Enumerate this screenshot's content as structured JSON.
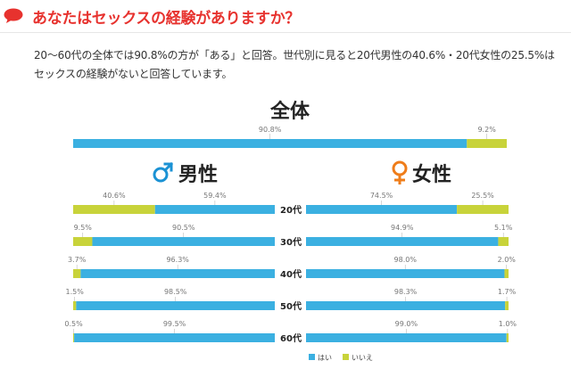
{
  "question": "あなたはセックスの経験がありますか？",
  "description": "20〜60代の全体では90.8%の方が「ある」と回答。世代別に見ると20代男性の40.6%・20代女性の25.5%はセックスの経験がないと回答しています。",
  "colors": {
    "yes": "#3bb0e1",
    "no": "#c8d33a",
    "male_symbol": "#1b92d4",
    "female_symbol": "#ef7d1a",
    "title_red": "#e7322e"
  },
  "icons": {
    "question_icon": "speech-bubble-icon",
    "male_icon": "male-symbol-icon",
    "female_icon": "female-symbol-icon"
  },
  "chart_data": {
    "type": "bar",
    "overall": {
      "title": "全体",
      "values": [
        90.8,
        9.2
      ],
      "labels": [
        "90.8%",
        "9.2%"
      ]
    },
    "male": {
      "title": "男性",
      "symbol": "♂",
      "rows": [
        {
          "age": "20代",
          "yes": 59.4,
          "no": 40.6,
          "yes_label": "59.4%",
          "no_label": "40.6%"
        },
        {
          "age": "30代",
          "yes": 90.5,
          "no": 9.5,
          "yes_label": "90.5%",
          "no_label": "9.5%"
        },
        {
          "age": "40代",
          "yes": 96.3,
          "no": 3.7,
          "yes_label": "96.3%",
          "no_label": "3.7%"
        },
        {
          "age": "50代",
          "yes": 98.5,
          "no": 1.5,
          "yes_label": "98.5%",
          "no_label": "1.5%"
        },
        {
          "age": "60代",
          "yes": 99.5,
          "no": 0.5,
          "yes_label": "99.5%",
          "no_label": "0.5%"
        }
      ]
    },
    "female": {
      "title": "女性",
      "symbol": "♀",
      "rows": [
        {
          "age": "20代",
          "yes": 74.5,
          "no": 25.5,
          "yes_label": "74.5%",
          "no_label": "25.5%"
        },
        {
          "age": "30代",
          "yes": 94.9,
          "no": 5.1,
          "yes_label": "94.9%",
          "no_label": "5.1%"
        },
        {
          "age": "40代",
          "yes": 98.0,
          "no": 2.0,
          "yes_label": "98.0%",
          "no_label": "2.0%"
        },
        {
          "age": "50代",
          "yes": 98.3,
          "no": 1.7,
          "yes_label": "98.3%",
          "no_label": "1.7%"
        },
        {
          "age": "60代",
          "yes": 99.0,
          "no": 1.0,
          "yes_label": "99.0%",
          "no_label": "1.0%"
        }
      ]
    },
    "legend": [
      {
        "name": "はい",
        "color": "#3bb0e1"
      },
      {
        "name": "いいえ",
        "color": "#c8d33a"
      }
    ],
    "legend_position": "bottom-center",
    "grid": false
  }
}
